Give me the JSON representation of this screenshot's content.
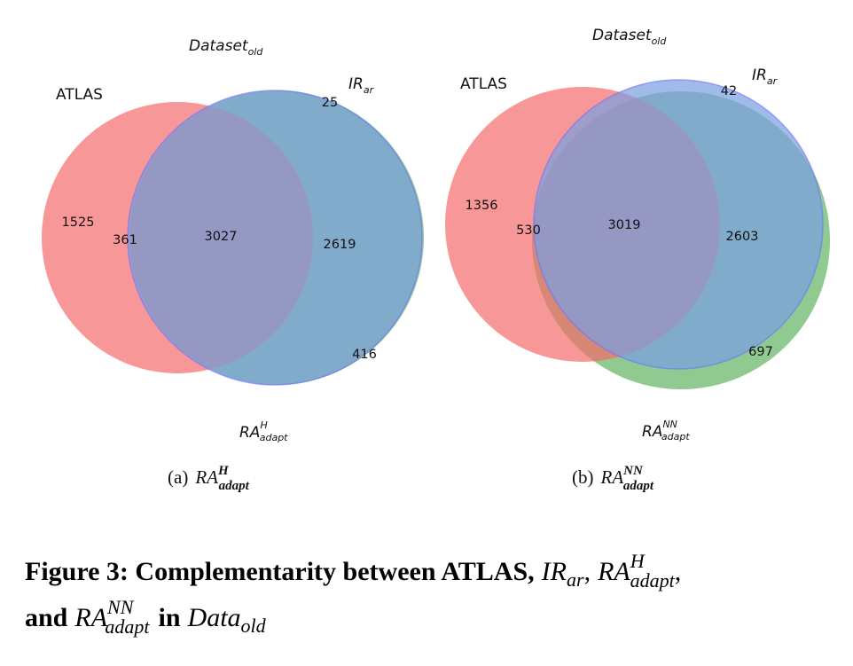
{
  "colors": {
    "atlas": "#f56b6b",
    "ir": "#7b9fe0",
    "ra": "#6bb86b",
    "ir_edge": "#7070ff"
  },
  "diagram_a": {
    "title_base": "Dataset",
    "title_sub": "old",
    "set_atlas": "ATLAS",
    "set_ir_base": "IR",
    "set_ir_sub": "ar",
    "set_ra_base": "RA",
    "set_ra_sup": "H",
    "set_ra_sub": "adapt",
    "only_atlas": "1525",
    "atlas_ra": "361",
    "all_three": "3027",
    "ir_ra": "2619",
    "only_ir": "25",
    "only_ra": "416",
    "caption_tag": "(a)",
    "caption_base": "RA",
    "caption_sup": "H",
    "caption_sub": "adapt"
  },
  "diagram_b": {
    "title_base": "Dataset",
    "title_sub": "old",
    "set_atlas": "ATLAS",
    "set_ir_base": "IR",
    "set_ir_sub": "ar",
    "set_ra_base": "RA",
    "set_ra_sup": "NN",
    "set_ra_sub": "adapt",
    "only_atlas": "1356",
    "atlas_ra": "530",
    "all_three": "3019",
    "ir_ra": "2603",
    "only_ir": "42",
    "only_ra": "697",
    "caption_tag": "(b)",
    "caption_base": "RA",
    "caption_sup": "NN",
    "caption_sub": "adapt"
  },
  "figure_caption": {
    "label": "Figure 3: Complementarity between ATLAS,",
    "ir_base": "IR",
    "ir_sub": "ar",
    "comma1": ",",
    "ra_h_base": "RA",
    "ra_h_sup": "H",
    "ra_h_sub": "adapt",
    "comma2": ",",
    "and": "and",
    "ra_nn_base": "RA",
    "ra_nn_sup": "NN",
    "ra_nn_sub": "adapt",
    "in": "in",
    "data_base": "Data",
    "data_sub": "old"
  }
}
